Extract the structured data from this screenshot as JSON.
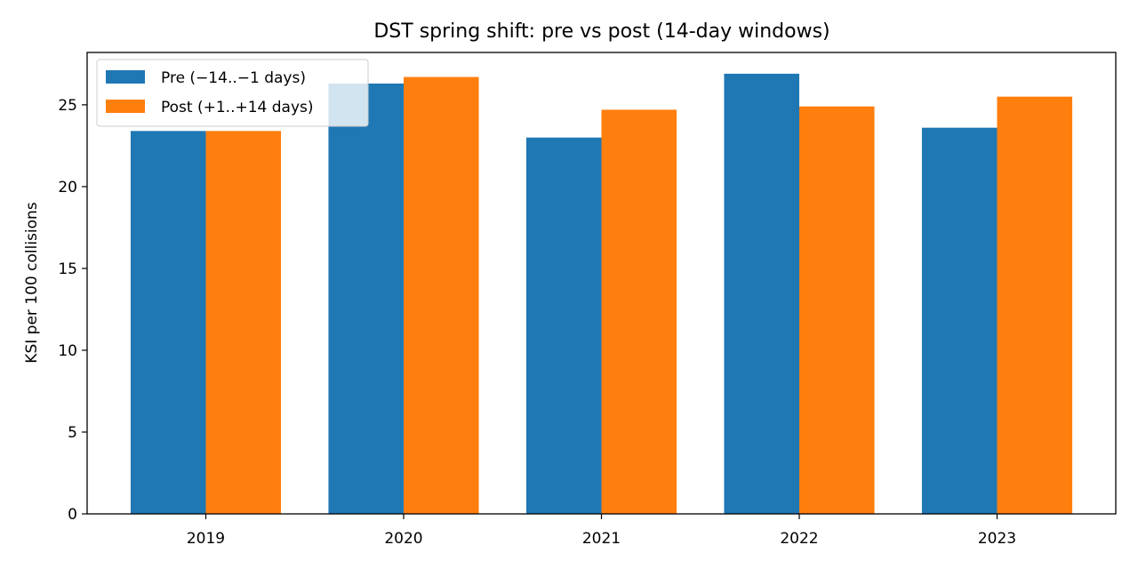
{
  "chart_data": {
    "type": "bar",
    "title": "DST spring shift: pre vs post (14-day windows)",
    "xlabel": "",
    "ylabel": "KSI per 100 collisions",
    "categories": [
      "2019",
      "2020",
      "2021",
      "2022",
      "2023"
    ],
    "series": [
      {
        "name": "Pre (−14..−1 days)",
        "color": "#1f77b4",
        "values": [
          23.4,
          26.3,
          23.0,
          26.9,
          23.6
        ]
      },
      {
        "name": "Post (+1..+14 days)",
        "color": "#ff7f0e",
        "values": [
          23.4,
          26.7,
          24.7,
          24.9,
          25.5
        ]
      }
    ],
    "ylim": [
      0,
      28.2
    ],
    "yticks": [
      0,
      5,
      10,
      15,
      20,
      25
    ],
    "grid": false,
    "legend_position": "top-left"
  }
}
